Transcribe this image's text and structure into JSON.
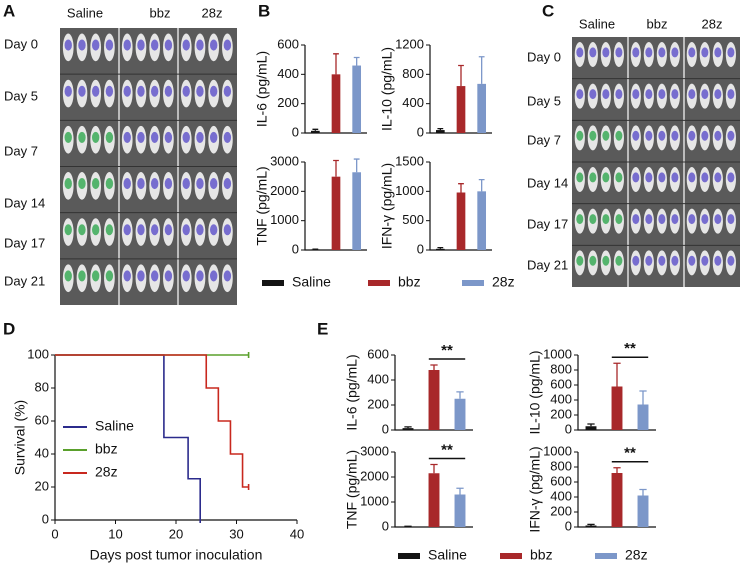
{
  "panel_labels": [
    "A",
    "B",
    "C",
    "D",
    "E"
  ],
  "panel_a": {
    "columns": [
      "Saline",
      "bbz",
      "28z"
    ],
    "rows": [
      "Day 0",
      "Day 5",
      "Day 7",
      "Day 14",
      "Day 17",
      "Day 21"
    ]
  },
  "panel_c": {
    "columns": [
      "Saline",
      "bbz",
      "28z"
    ],
    "rows": [
      "Day 0",
      "Day 5",
      "Day 7",
      "Day 14",
      "Day 17",
      "Day 21"
    ]
  },
  "legend_b": [
    {
      "name": "Saline",
      "color": "#141414"
    },
    {
      "name": "bbz",
      "color": "#a8282a"
    },
    {
      "name": "28z",
      "color": "#7c97c9"
    }
  ],
  "legend_e": [
    {
      "name": "Saline",
      "color": "#141414"
    },
    {
      "name": "bbz",
      "color": "#a8282a"
    },
    {
      "name": "28z",
      "color": "#7c97c9"
    }
  ],
  "chart_data": [
    {
      "type": "bar",
      "ylabel": "IL-6 (pg/mL)",
      "values": [
        15,
        400,
        460
      ],
      "errors": [
        10,
        140,
        55
      ],
      "colors": [
        "#141414",
        "#a8282a",
        "#7c97c9"
      ],
      "ylim": [
        0,
        600
      ],
      "yticks": [
        0,
        200,
        400,
        600
      ]
    },
    {
      "type": "bar",
      "ylabel": "IL-10 (pg/mL)",
      "values": [
        40,
        640,
        670
      ],
      "errors": [
        20,
        280,
        370
      ],
      "colors": [
        "#141414",
        "#a8282a",
        "#7c97c9"
      ],
      "ylim": [
        0,
        1200
      ],
      "yticks": [
        0,
        400,
        800,
        1200
      ]
    },
    {
      "type": "bar",
      "ylabel": "TNF (pg/mL)",
      "values": [
        20,
        2500,
        2650
      ],
      "errors": [
        10,
        550,
        450
      ],
      "colors": [
        "#141414",
        "#a8282a",
        "#7c97c9"
      ],
      "ylim": [
        0,
        3000
      ],
      "yticks": [
        0,
        1000,
        2000,
        3000
      ]
    },
    {
      "type": "bar",
      "ylabel": "IFN-γ (pg/mL)",
      "values": [
        20,
        980,
        1000
      ],
      "errors": [
        20,
        150,
        200
      ],
      "colors": [
        "#141414",
        "#a8282a",
        "#7c97c9"
      ],
      "ylim": [
        0,
        1500
      ],
      "yticks": [
        0,
        500,
        1000,
        1500
      ]
    },
    {
      "type": "step",
      "xlabel": "Days post tumor inoculation",
      "ylabel": "Survival (%)",
      "xlim": [
        0,
        40
      ],
      "xticks": [
        0,
        10,
        20,
        30,
        40
      ],
      "ylim": [
        0,
        100
      ],
      "yticks": [
        0,
        20,
        40,
        60,
        80,
        100
      ],
      "series": [
        {
          "name": "Saline",
          "color": "#2b2b8c",
          "x": [
            0,
            18,
            22,
            24
          ],
          "y": [
            100,
            50,
            25,
            0
          ]
        },
        {
          "name": "bbz",
          "color": "#5aa02c",
          "x": [
            0,
            32
          ],
          "y": [
            100,
            100
          ]
        },
        {
          "name": "28z",
          "color": "#c8281e",
          "x": [
            0,
            25,
            27,
            29,
            31,
            32
          ],
          "y": [
            100,
            80,
            60,
            40,
            20,
            20
          ]
        }
      ]
    },
    {
      "type": "bar",
      "ylabel": "IL-6 (pg/mL)",
      "annotation": "**",
      "values": [
        15,
        480,
        250
      ],
      "errors": [
        10,
        40,
        55
      ],
      "colors": [
        "#141414",
        "#a8282a",
        "#7c97c9"
      ],
      "ylim": [
        0,
        600
      ],
      "yticks": [
        0,
        200,
        400,
        600
      ]
    },
    {
      "type": "bar",
      "ylabel": "IL-10 (pg/mL)",
      "annotation": "**",
      "values": [
        50,
        580,
        340
      ],
      "errors": [
        30,
        310,
        180
      ],
      "colors": [
        "#141414",
        "#a8282a",
        "#7c97c9"
      ],
      "ylim": [
        0,
        1000
      ],
      "yticks": [
        0,
        200,
        400,
        600,
        800,
        1000
      ]
    },
    {
      "type": "bar",
      "ylabel": "TNF (pg/mL)",
      "annotation": "**",
      "values": [
        20,
        2150,
        1300
      ],
      "errors": [
        10,
        350,
        250
      ],
      "colors": [
        "#141414",
        "#a8282a",
        "#7c97c9"
      ],
      "ylim": [
        0,
        3000
      ],
      "yticks": [
        0,
        1000,
        2000,
        3000
      ]
    },
    {
      "type": "bar",
      "ylabel": "IFN-γ (pg/mL)",
      "annotation": "**",
      "values": [
        20,
        720,
        420
      ],
      "errors": [
        15,
        70,
        80
      ],
      "colors": [
        "#141414",
        "#a8282a",
        "#7c97c9"
      ],
      "ylim": [
        0,
        1000
      ],
      "yticks": [
        0,
        200,
        400,
        600,
        800,
        1000
      ]
    }
  ]
}
